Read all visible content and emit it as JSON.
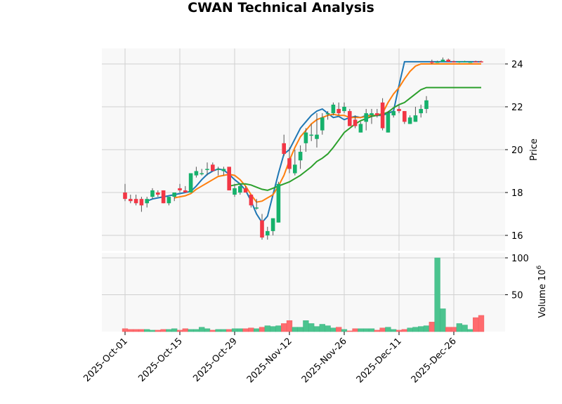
{
  "title": "CWAN Technical Analysis",
  "colors": {
    "up": "#16b16b",
    "down": "#f23645",
    "up_volume": "#4bc48f",
    "down_volume": "#ff6b6e",
    "ma_fast": "#1f77b4",
    "ma_mid": "#ff7f0e",
    "ma_slow": "#2ca02c",
    "panel_bg": "#f8f8f8",
    "grid": "#d0d0d0"
  },
  "chart_data": {
    "type": "candlestick",
    "title": "CWAN Technical Analysis",
    "xlabel": "",
    "ylabel": "Price",
    "volume_label": "Volume  10^6",
    "ylim": [
      15.5,
      24.7
    ],
    "volume_ylim": [
      0,
      103
    ],
    "yticks": [
      16,
      18,
      20,
      22,
      24
    ],
    "volume_yticks": [
      50,
      100
    ],
    "xtick_labels": [
      "2025-Oct-01",
      "2025-Oct-15",
      "2025-Oct-29",
      "2025-Nov-12",
      "2025-Nov-26",
      "2025-Dec-11",
      "2025-Dec-26"
    ],
    "xtick_indices": [
      0,
      10,
      20,
      30,
      40,
      50,
      60
    ],
    "grid": true,
    "candles": [
      {
        "o": 18.0,
        "h": 18.4,
        "l": 17.6,
        "c": 17.7,
        "v": 4
      },
      {
        "o": 17.7,
        "h": 17.9,
        "l": 17.5,
        "c": 17.6,
        "v": 3
      },
      {
        "o": 17.7,
        "h": 17.9,
        "l": 17.4,
        "c": 17.5,
        "v": 3
      },
      {
        "o": 17.7,
        "h": 17.8,
        "l": 17.1,
        "c": 17.4,
        "v": 3
      },
      {
        "o": 17.5,
        "h": 17.8,
        "l": 17.3,
        "c": 17.7,
        "v": 3
      },
      {
        "o": 17.8,
        "h": 18.2,
        "l": 17.7,
        "c": 18.1,
        "v": 2
      },
      {
        "o": 18.0,
        "h": 18.1,
        "l": 17.8,
        "c": 17.9,
        "v": 2
      },
      {
        "o": 18.1,
        "h": 18.1,
        "l": 17.5,
        "c": 17.5,
        "v": 3
      },
      {
        "o": 17.5,
        "h": 17.8,
        "l": 17.4,
        "c": 17.8,
        "v": 3
      },
      {
        "o": 17.8,
        "h": 18.0,
        "l": 17.6,
        "c": 18.0,
        "v": 4
      },
      {
        "o": 18.2,
        "h": 18.4,
        "l": 18.0,
        "c": 18.1,
        "v": 2
      },
      {
        "o": 18.1,
        "h": 18.3,
        "l": 18.0,
        "c": 18.0,
        "v": 4
      },
      {
        "o": 18.0,
        "h": 18.9,
        "l": 18.0,
        "c": 18.9,
        "v": 3
      },
      {
        "o": 18.8,
        "h": 19.2,
        "l": 18.7,
        "c": 19.0,
        "v": 3
      },
      {
        "o": 18.9,
        "h": 19.1,
        "l": 18.8,
        "c": 18.9,
        "v": 6
      },
      {
        "o": 19.1,
        "h": 19.4,
        "l": 18.8,
        "c": 19.1,
        "v": 4
      },
      {
        "o": 19.3,
        "h": 19.4,
        "l": 19.0,
        "c": 19.0,
        "v": 2
      },
      {
        "o": 19.1,
        "h": 19.2,
        "l": 18.8,
        "c": 19.1,
        "v": 3
      },
      {
        "o": 19.0,
        "h": 19.2,
        "l": 18.8,
        "c": 19.1,
        "v": 3
      },
      {
        "o": 19.2,
        "h": 19.2,
        "l": 18.1,
        "c": 18.1,
        "v": 3
      },
      {
        "o": 17.9,
        "h": 18.4,
        "l": 17.8,
        "c": 18.2,
        "v": 4
      },
      {
        "o": 18.0,
        "h": 18.4,
        "l": 17.9,
        "c": 18.3,
        "v": 4
      },
      {
        "o": 18.2,
        "h": 18.3,
        "l": 18.0,
        "c": 18.0,
        "v": 4
      },
      {
        "o": 17.9,
        "h": 17.9,
        "l": 17.3,
        "c": 17.4,
        "v": 5
      },
      {
        "o": 17.3,
        "h": 17.7,
        "l": 17.2,
        "c": 17.3,
        "v": 4
      },
      {
        "o": 16.7,
        "h": 17.0,
        "l": 15.8,
        "c": 15.9,
        "v": 6
      },
      {
        "o": 16.0,
        "h": 16.4,
        "l": 15.8,
        "c": 16.2,
        "v": 8
      },
      {
        "o": 16.2,
        "h": 16.7,
        "l": 16.0,
        "c": 16.8,
        "v": 7
      },
      {
        "o": 16.6,
        "h": 18.5,
        "l": 16.6,
        "c": 18.4,
        "v": 8
      },
      {
        "o": 20.3,
        "h": 20.7,
        "l": 19.7,
        "c": 19.8,
        "v": 11
      },
      {
        "o": 19.6,
        "h": 20.1,
        "l": 18.9,
        "c": 19.1,
        "v": 15
      },
      {
        "o": 18.9,
        "h": 20.0,
        "l": 18.8,
        "c": 19.3,
        "v": 6
      },
      {
        "o": 19.5,
        "h": 20.2,
        "l": 19.1,
        "c": 19.9,
        "v": 6
      },
      {
        "o": 20.3,
        "h": 21.0,
        "l": 19.9,
        "c": 20.8,
        "v": 15
      },
      {
        "o": 20.7,
        "h": 21.2,
        "l": 20.4,
        "c": 20.7,
        "v": 11
      },
      {
        "o": 20.5,
        "h": 21.7,
        "l": 20.1,
        "c": 20.7,
        "v": 7
      },
      {
        "o": 20.9,
        "h": 21.7,
        "l": 20.7,
        "c": 21.5,
        "v": 10
      },
      {
        "o": 21.7,
        "h": 21.8,
        "l": 21.4,
        "c": 21.7,
        "v": 8
      },
      {
        "o": 21.7,
        "h": 22.2,
        "l": 21.6,
        "c": 22.1,
        "v": 5
      },
      {
        "o": 21.9,
        "h": 22.2,
        "l": 21.6,
        "c": 21.7,
        "v": 6
      },
      {
        "o": 21.8,
        "h": 22.2,
        "l": 21.7,
        "c": 22.0,
        "v": 3
      },
      {
        "o": 21.8,
        "h": 21.9,
        "l": 21.1,
        "c": 21.1,
        "v": 1
      },
      {
        "o": 21.4,
        "h": 21.6,
        "l": 21.0,
        "c": 21.1,
        "v": 4
      },
      {
        "o": 20.8,
        "h": 21.3,
        "l": 20.8,
        "c": 21.2,
        "v": 4
      },
      {
        "o": 21.3,
        "h": 21.9,
        "l": 20.9,
        "c": 21.7,
        "v": 4
      },
      {
        "o": 21.6,
        "h": 21.9,
        "l": 21.2,
        "c": 21.7,
        "v": 4
      },
      {
        "o": 21.7,
        "h": 21.9,
        "l": 21.5,
        "c": 21.6,
        "v": 2
      },
      {
        "o": 22.2,
        "h": 22.4,
        "l": 20.9,
        "c": 21.0,
        "v": 5
      },
      {
        "o": 20.8,
        "h": 21.8,
        "l": 20.8,
        "c": 21.7,
        "v": 6
      },
      {
        "o": 21.6,
        "h": 21.8,
        "l": 21.5,
        "c": 21.8,
        "v": 3
      },
      {
        "o": 21.9,
        "h": 22.1,
        "l": 21.7,
        "c": 21.8,
        "v": 2
      },
      {
        "o": 21.8,
        "h": 21.8,
        "l": 21.2,
        "c": 21.3,
        "v": 3
      },
      {
        "o": 21.2,
        "h": 21.6,
        "l": 21.2,
        "c": 21.5,
        "v": 5
      },
      {
        "o": 21.3,
        "h": 22.0,
        "l": 21.3,
        "c": 21.6,
        "v": 6
      },
      {
        "o": 21.7,
        "h": 22.1,
        "l": 21.5,
        "c": 21.9,
        "v": 7
      },
      {
        "o": 21.9,
        "h": 22.5,
        "l": 21.7,
        "c": 22.3,
        "v": 8
      },
      {
        "o": 24.1,
        "h": 24.2,
        "l": 24.0,
        "c": 24.05,
        "v": 13
      },
      {
        "o": 24.1,
        "h": 24.15,
        "l": 24.05,
        "c": 24.1,
        "v": 100
      },
      {
        "o": 24.1,
        "h": 24.3,
        "l": 24.1,
        "c": 24.2,
        "v": 31
      },
      {
        "o": 24.2,
        "h": 24.25,
        "l": 24.1,
        "c": 24.1,
        "v": 6
      },
      {
        "o": 24.12,
        "h": 24.15,
        "l": 24.08,
        "c": 24.1,
        "v": 6
      },
      {
        "o": 24.08,
        "h": 24.12,
        "l": 24.05,
        "c": 24.12,
        "v": 11
      },
      {
        "o": 24.1,
        "h": 24.15,
        "l": 24.08,
        "c": 24.12,
        "v": 9
      },
      {
        "o": 24.08,
        "h": 24.12,
        "l": 24.05,
        "c": 24.1,
        "v": 3
      },
      {
        "o": 24.12,
        "h": 24.15,
        "l": 24.08,
        "c": 24.1,
        "v": 19
      },
      {
        "o": 24.12,
        "h": 24.15,
        "l": 24.08,
        "c": 24.1,
        "v": 22
      }
    ],
    "series": [
      {
        "name": "MA fast",
        "color": "#1f77b4",
        "start": 4,
        "values": [
          17.6,
          17.7,
          17.75,
          17.8,
          17.85,
          17.9,
          17.95,
          18.0,
          18.05,
          18.3,
          18.6,
          18.85,
          19.0,
          19.1,
          19.05,
          18.85,
          18.6,
          18.4,
          18.1,
          17.6,
          17.0,
          16.6,
          16.9,
          17.9,
          18.9,
          19.8,
          20.0,
          20.5,
          21.0,
          21.3,
          21.6,
          21.8,
          21.9,
          21.7,
          21.5,
          21.55,
          21.4,
          21.5,
          21.55,
          21.5,
          21.6,
          21.6,
          21.6,
          21.6,
          21.7,
          21.8,
          23.0,
          24.1,
          24.1,
          24.1,
          24.1,
          24.1,
          24.1,
          24.1,
          24.1,
          24.1,
          24.1,
          24.1,
          24.1,
          24.1,
          24.1,
          24.1
        ]
      },
      {
        "name": "MA mid",
        "color": "#ff7f0e",
        "start": 9,
        "values": [
          17.75,
          17.8,
          17.85,
          17.95,
          18.15,
          18.3,
          18.45,
          18.6,
          18.75,
          18.8,
          18.85,
          18.8,
          18.6,
          18.3,
          17.9,
          17.55,
          17.6,
          17.75,
          17.9,
          18.3,
          18.8,
          19.5,
          20.1,
          20.6,
          20.9,
          21.2,
          21.4,
          21.5,
          21.6,
          21.65,
          21.6,
          21.6,
          21.5,
          21.5,
          21.5,
          21.55,
          21.6,
          21.6,
          21.7,
          22.2,
          22.6,
          22.9,
          23.3,
          23.65,
          23.9,
          24.0,
          24.0,
          24.0,
          24.0,
          24.0,
          24.0,
          24.0,
          24.0,
          24.0,
          24.0,
          24.0,
          24.0
        ]
      },
      {
        "name": "MA slow",
        "color": "#2ca02c",
        "start": 19,
        "values": [
          18.3,
          18.35,
          18.4,
          18.4,
          18.35,
          18.25,
          18.15,
          18.1,
          18.2,
          18.3,
          18.4,
          18.5,
          18.65,
          18.8,
          19.0,
          19.2,
          19.45,
          19.6,
          19.8,
          20.1,
          20.45,
          20.8,
          21.0,
          21.2,
          21.35,
          21.45,
          21.55,
          21.6,
          21.65,
          21.75,
          21.95,
          22.1,
          22.2,
          22.4,
          22.6,
          22.8,
          22.9,
          22.9,
          22.9,
          22.9,
          22.9,
          22.9,
          22.9,
          22.9,
          22.9,
          22.9,
          22.9
        ]
      }
    ]
  }
}
